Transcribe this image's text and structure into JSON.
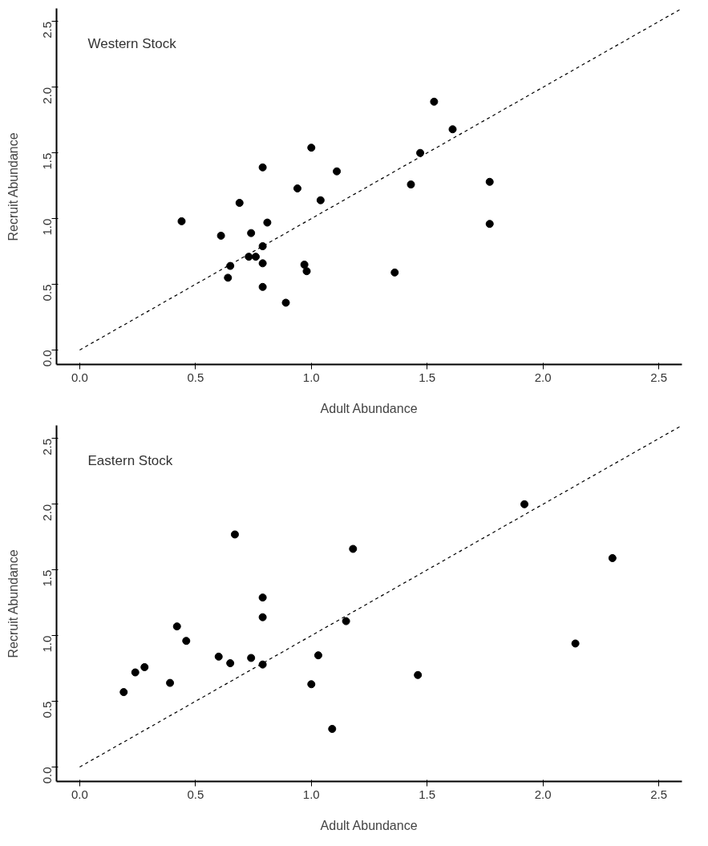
{
  "chart_data": [
    {
      "type": "scatter",
      "xlabel": "Adult Abundance",
      "ylabel": "Recruit Abundance",
      "annotations": [
        "Western Stock"
      ],
      "xlim": [
        -0.1,
        2.6
      ],
      "ylim": [
        -0.11,
        2.6
      ],
      "xticks": [
        {
          "value": 0,
          "label": "0.0"
        },
        0.5,
        {
          "value": 1,
          "label": "1.0"
        },
        1.5,
        {
          "value": 2,
          "label": "2.0"
        },
        2.5
      ],
      "yticks": [
        {
          "value": 0,
          "label": "0.0"
        },
        0.5,
        {
          "value": 1,
          "label": "1.0"
        },
        1.5,
        {
          "value": 2,
          "label": "2.0"
        },
        2.5
      ],
      "grid": false,
      "series": [
        {
          "color": "#000000",
          "marker": "circle",
          "x": [
            0.44,
            0.61,
            0.69,
            0.74,
            0.73,
            0.76,
            0.79,
            0.79,
            0.79,
            0.79,
            0.81,
            0.65,
            0.64,
            0.89,
            0.94,
            0.97,
            0.98,
            1.0,
            1.04,
            1.11,
            1.36,
            1.43,
            1.47,
            1.53,
            1.61,
            1.77,
            1.77
          ],
          "values": [
            0.98,
            0.87,
            1.12,
            0.89,
            0.71,
            0.71,
            0.79,
            0.66,
            1.39,
            0.48,
            0.97,
            0.64,
            0.55,
            0.36,
            1.23,
            0.65,
            0.6,
            1.54,
            1.14,
            1.36,
            0.59,
            1.26,
            1.5,
            1.89,
            1.68,
            1.28,
            0.96
          ]
        },
        {
          "type": "line",
          "color": "#000000",
          "line_style": "dashed",
          "x": [
            0,
            2.6
          ],
          "values": [
            0,
            2.6
          ]
        }
      ]
    },
    {
      "type": "scatter",
      "xlabel": "Adult Abundance",
      "ylabel": "Recruit Abundance",
      "annotations": [
        "Eastern Stock"
      ],
      "xlim": [
        -0.1,
        2.6
      ],
      "ylim": [
        -0.11,
        2.6
      ],
      "xticks": [
        {
          "value": 0,
          "label": "0.0"
        },
        0.5,
        {
          "value": 1,
          "label": "1.0"
        },
        1.5,
        {
          "value": 2,
          "label": "2.0"
        },
        2.5
      ],
      "yticks": [
        {
          "value": 0,
          "label": "0.0"
        },
        0.5,
        {
          "value": 1,
          "label": "1.0"
        },
        1.5,
        {
          "value": 2,
          "label": "2.0"
        },
        2.5
      ],
      "grid": false,
      "series": [
        {
          "color": "#000000",
          "marker": "circle",
          "x": [
            0.19,
            0.24,
            0.28,
            0.39,
            0.42,
            0.46,
            0.6,
            0.65,
            0.67,
            0.74,
            0.79,
            0.79,
            0.79,
            1.0,
            1.03,
            1.09,
            1.15,
            1.18,
            1.46,
            1.92,
            2.14,
            2.3
          ],
          "values": [
            0.57,
            0.72,
            0.76,
            0.64,
            1.07,
            0.96,
            0.84,
            0.79,
            1.77,
            0.83,
            1.29,
            1.14,
            0.78,
            0.63,
            0.85,
            0.29,
            1.11,
            1.66,
            0.7,
            2.0,
            0.94,
            1.59
          ]
        },
        {
          "type": "line",
          "color": "#000000",
          "line_style": "dashed",
          "x": [
            0,
            2.6
          ],
          "values": [
            0,
            2.6
          ]
        }
      ]
    }
  ]
}
